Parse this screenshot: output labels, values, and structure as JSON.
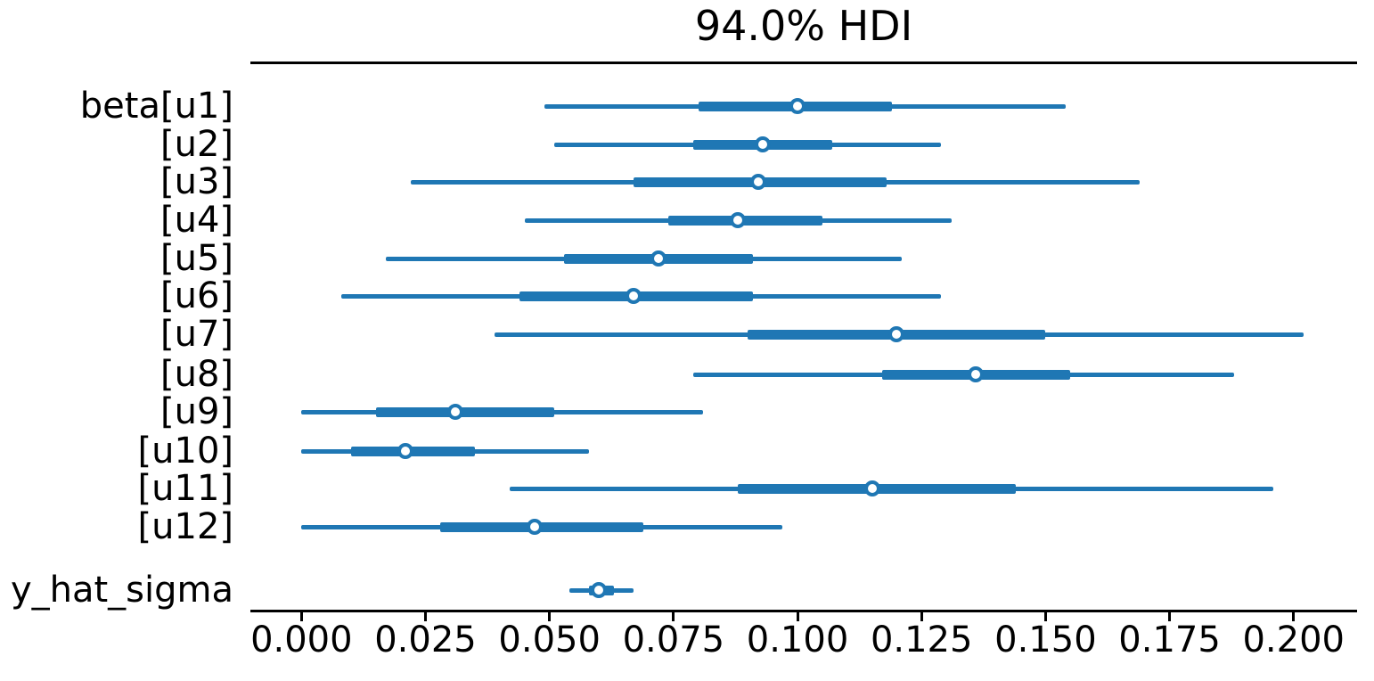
{
  "figure": {
    "background_color": "#ffffff",
    "spine_color": "#000000",
    "text_color": "#000000",
    "accent_color": "#1f77b4",
    "marker_fill_color": "#ffffff"
  },
  "chart_data": {
    "type": "forest",
    "title": "94.0% HDI",
    "hdi_probability": "94.0%",
    "orientation": "horizontal",
    "grid": false,
    "legend": "none",
    "xlim": [
      -0.0103,
      0.2128
    ],
    "x_ticks": [
      0.0,
      0.025,
      0.05,
      0.075,
      0.1,
      0.125,
      0.15,
      0.175,
      0.2
    ],
    "x_tick_labels": [
      "0.000",
      "0.025",
      "0.050",
      "0.075",
      "0.100",
      "0.125",
      "0.150",
      "0.175",
      "0.200"
    ],
    "rows": [
      {
        "label": "beta[u1]",
        "hdi_low": 0.049,
        "hdi_high": 0.154,
        "quartile_low": 0.08,
        "quartile_high": 0.119,
        "point": 0.1
      },
      {
        "label": "[u2]",
        "hdi_low": 0.051,
        "hdi_high": 0.129,
        "quartile_low": 0.079,
        "quartile_high": 0.107,
        "point": 0.093
      },
      {
        "label": "[u3]",
        "hdi_low": 0.022,
        "hdi_high": 0.169,
        "quartile_low": 0.067,
        "quartile_high": 0.118,
        "point": 0.092
      },
      {
        "label": "[u4]",
        "hdi_low": 0.045,
        "hdi_high": 0.131,
        "quartile_low": 0.074,
        "quartile_high": 0.105,
        "point": 0.088
      },
      {
        "label": "[u5]",
        "hdi_low": 0.017,
        "hdi_high": 0.121,
        "quartile_low": 0.053,
        "quartile_high": 0.091,
        "point": 0.072
      },
      {
        "label": "[u6]",
        "hdi_low": 0.008,
        "hdi_high": 0.129,
        "quartile_low": 0.044,
        "quartile_high": 0.091,
        "point": 0.067
      },
      {
        "label": "[u7]",
        "hdi_low": 0.039,
        "hdi_high": 0.202,
        "quartile_low": 0.09,
        "quartile_high": 0.15,
        "point": 0.12
      },
      {
        "label": "[u8]",
        "hdi_low": 0.079,
        "hdi_high": 0.188,
        "quartile_low": 0.117,
        "quartile_high": 0.155,
        "point": 0.136
      },
      {
        "label": "[u9]",
        "hdi_low": 0.0,
        "hdi_high": 0.081,
        "quartile_low": 0.015,
        "quartile_high": 0.051,
        "point": 0.031
      },
      {
        "label": "[u10]",
        "hdi_low": 0.0,
        "hdi_high": 0.058,
        "quartile_low": 0.01,
        "quartile_high": 0.035,
        "point": 0.021
      },
      {
        "label": "[u11]",
        "hdi_low": 0.042,
        "hdi_high": 0.196,
        "quartile_low": 0.088,
        "quartile_high": 0.144,
        "point": 0.115
      },
      {
        "label": "[u12]",
        "hdi_low": 0.0,
        "hdi_high": 0.097,
        "quartile_low": 0.028,
        "quartile_high": 0.069,
        "point": 0.047
      },
      {
        "label": "y_hat_sigma",
        "hdi_low": 0.054,
        "hdi_high": 0.067,
        "quartile_low": 0.058,
        "quartile_high": 0.063,
        "point": 0.06
      }
    ]
  }
}
